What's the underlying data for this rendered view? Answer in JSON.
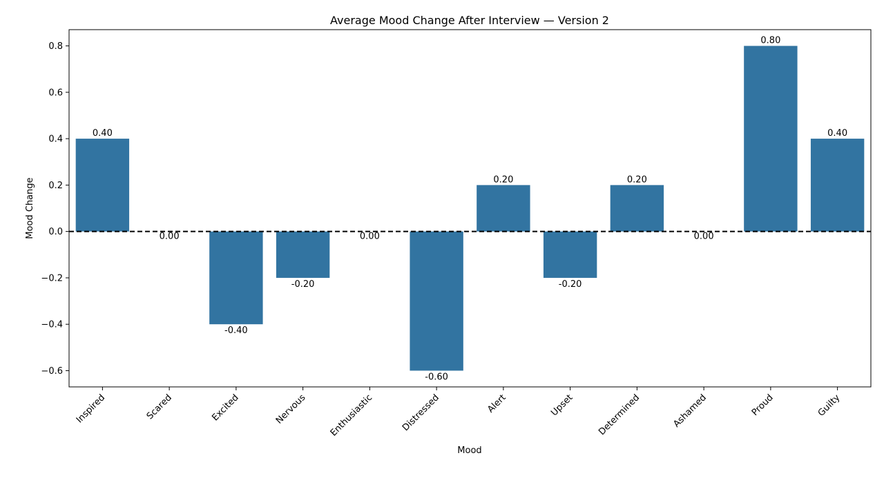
{
  "chart_data": {
    "type": "bar",
    "title": "Average Mood Change After Interview — Version 2",
    "xlabel": "Mood",
    "ylabel": "Mood Change",
    "categories": [
      "Inspired",
      "Scared",
      "Excited",
      "Nervous",
      "Enthusiastic",
      "Distressed",
      "Alert",
      "Upset",
      "Determined",
      "Ashamed",
      "Proud",
      "Guilty"
    ],
    "values": [
      0.4,
      0.0,
      -0.4,
      -0.2,
      0.0,
      -0.6,
      0.2,
      -0.2,
      0.2,
      0.0,
      0.8,
      0.4
    ],
    "data_labels": [
      "0.40",
      "0.00",
      "-0.40",
      "-0.20",
      "0.00",
      "-0.60",
      "0.20",
      "-0.20",
      "0.20",
      "0.00",
      "0.80",
      "0.40"
    ],
    "yticks": [
      -0.6,
      -0.4,
      -0.2,
      0.0,
      0.2,
      0.4,
      0.6,
      0.8
    ],
    "ytick_labels": [
      "−0.6",
      "−0.4",
      "−0.2",
      "0.0",
      "0.2",
      "0.4",
      "0.6",
      "0.8"
    ],
    "ylim": [
      -0.67,
      0.87
    ],
    "reference_line": 0.0,
    "grid": false,
    "legend": "none",
    "colors": {
      "bar": "#3274a1",
      "reference_line": "#000000",
      "axes": "#000000"
    }
  }
}
